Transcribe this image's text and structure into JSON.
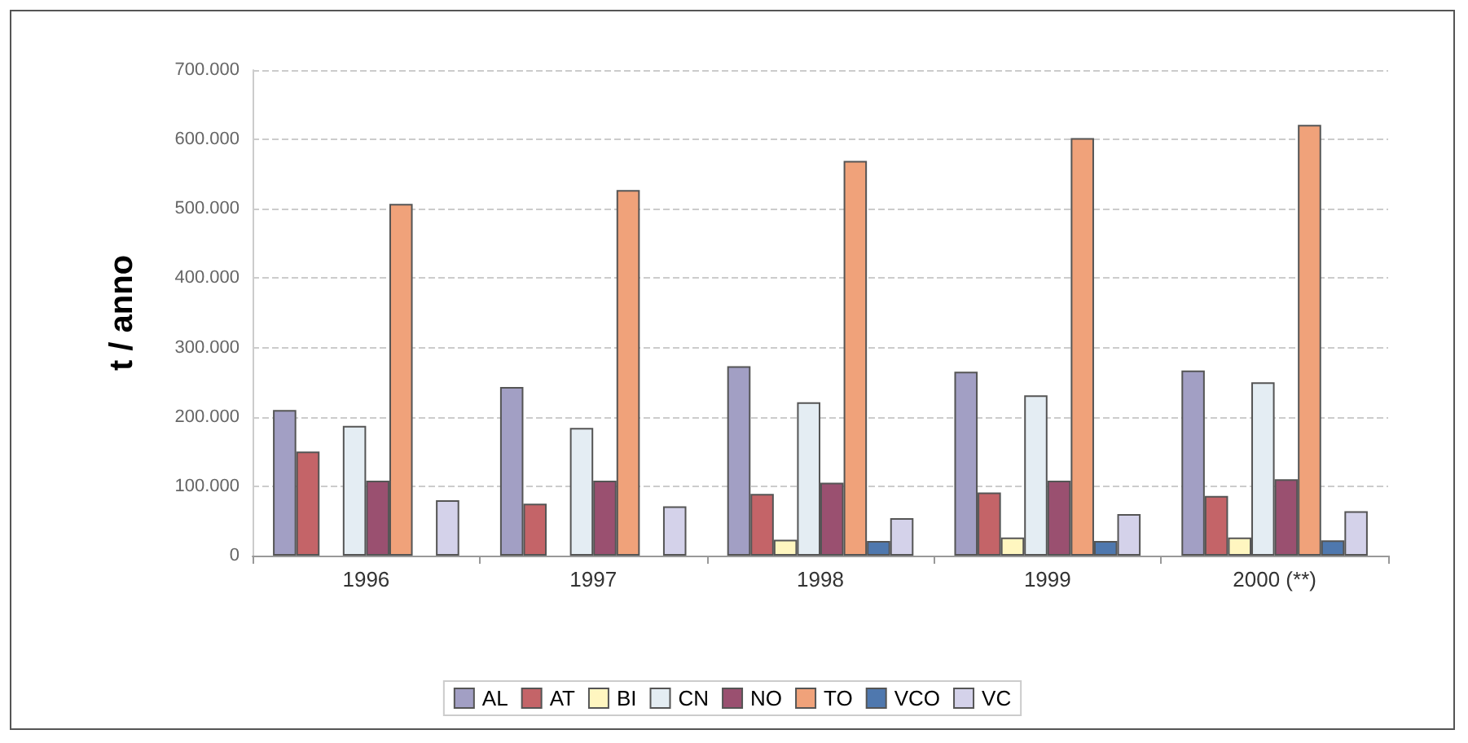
{
  "chart_data": {
    "type": "bar",
    "ylabel": "t / anno",
    "categories": [
      "1996",
      "1997",
      "1998",
      "1999",
      "2000 (**)"
    ],
    "series": [
      {
        "name": "AL",
        "color": "#a29fc4",
        "values": [
          210000,
          243000,
          273000,
          265000,
          267000
        ]
      },
      {
        "name": "AT",
        "color": "#c46468",
        "values": [
          150000,
          75000,
          89000,
          91000,
          86000
        ]
      },
      {
        "name": "BI",
        "color": "#fff6c0",
        "values": [
          null,
          null,
          23000,
          26000,
          26000
        ]
      },
      {
        "name": "CN",
        "color": "#e4edf3",
        "values": [
          187000,
          184000,
          221000,
          231000,
          250000
        ]
      },
      {
        "name": "NO",
        "color": "#9a5070",
        "values": [
          108000,
          108000,
          105000,
          108000,
          110000
        ]
      },
      {
        "name": "TO",
        "color": "#f0a27a",
        "values": [
          507000,
          527000,
          569000,
          602000,
          621000
        ]
      },
      {
        "name": "VCO",
        "color": "#4f78ae",
        "values": [
          null,
          null,
          21000,
          21000,
          22000
        ]
      },
      {
        "name": "VC",
        "color": "#d4d2ea",
        "values": [
          80000,
          71000,
          54000,
          60000,
          64000
        ]
      }
    ],
    "ylim": [
      0,
      700000
    ],
    "yticks": [
      0,
      {
        "value": 100000,
        "label": "100.000"
      },
      {
        "value": 200000,
        "label": "200.000"
      },
      {
        "value": 300000,
        "label": "300.000"
      },
      {
        "value": 400000,
        "label": "400.000"
      },
      {
        "value": 500000,
        "label": "500.000"
      },
      {
        "value": 600000,
        "label": "600.000"
      },
      {
        "value": 700000,
        "label": "700.000"
      }
    ],
    "grid": "y",
    "legend": "bottom"
  }
}
